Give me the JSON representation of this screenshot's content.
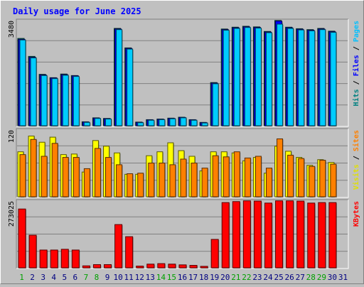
{
  "chart_data": {
    "type": "bar",
    "title": "Daily usage for June 2025",
    "categories": [
      "1",
      "2",
      "3",
      "4",
      "5",
      "6",
      "7",
      "8",
      "9",
      "10",
      "11",
      "12",
      "13",
      "14",
      "15",
      "16",
      "17",
      "18",
      "19",
      "20",
      "21",
      "22",
      "23",
      "24",
      "25",
      "26",
      "27",
      "28",
      "29",
      "30",
      "31"
    ],
    "weekend_days": [
      "1",
      "7",
      "8",
      "14",
      "15",
      "21",
      "22",
      "28",
      "29"
    ],
    "panels": [
      {
        "id": "hits-files-pages",
        "max_label": "3480",
        "ylim": [
          0,
          3480
        ],
        "ylabels": [
          {
            "text": "Hits",
            "color": "#008080"
          },
          {
            "text": "Files",
            "color": "#0000ff"
          },
          {
            "text": "Pages",
            "color": "#00c0ff"
          }
        ],
        "series": [
          {
            "name": "Hits",
            "color": "#00806c",
            "values": [
              2870,
              2280,
              1690,
              1580,
              1700,
              1650,
              130,
              260,
              240,
              3200,
              2560,
              120,
              200,
              220,
              250,
              280,
              200,
              110,
              1420,
              3180,
              3240,
              3270,
              3250,
              3100,
              3460,
              3240,
              3190,
              3160,
              3200,
              3110,
              null
            ]
          },
          {
            "name": "Files",
            "color": "#0000ff",
            "values": [
              2840,
              2250,
              1670,
              1570,
              1680,
              1640,
              120,
              250,
              230,
              3180,
              2540,
              110,
              190,
              210,
              240,
              270,
              190,
              100,
              1400,
              3160,
              3220,
              3250,
              3230,
              3080,
              3440,
              3220,
              3170,
              3140,
              3180,
              3090,
              null
            ]
          },
          {
            "name": "Pages",
            "color": "#00ccff",
            "values": [
              2820,
              2230,
              1650,
              1550,
              1660,
              1620,
              110,
              240,
              220,
              3160,
              2520,
              100,
              180,
              200,
              230,
              260,
              180,
              90,
              1380,
              3140,
              3200,
              3230,
              3210,
              3060,
              3340,
              3200,
              3150,
              3120,
              3160,
              3070,
              null
            ]
          }
        ]
      },
      {
        "id": "visits-sites",
        "max_label": "120",
        "ylim": [
          0,
          120
        ],
        "ylabels": [
          {
            "text": "Visits",
            "color": "#e0e000"
          },
          {
            "text": "Sites",
            "color": "#ff8000"
          }
        ],
        "series": [
          {
            "name": "Visits",
            "color": "#ffff00",
            "values": [
              80,
              108,
              97,
              106,
              75,
              76,
              44,
              100,
              90,
              78,
              40,
              40,
              73,
              80,
              96,
              82,
              72,
              46,
              80,
              80,
              78,
              64,
              70,
              42,
              90,
              81,
              70,
              56,
              66,
              61,
              null
            ]
          },
          {
            "name": "Sites",
            "color": "#ff8000",
            "values": [
              75,
              102,
              72,
              95,
              70,
              70,
              50,
              86,
              70,
              57,
              41,
              42,
              60,
              60,
              57,
              67,
              60,
              51,
              73,
              71,
              80,
              69,
              72,
              51,
              103,
              74,
              68,
              54,
              65,
              58,
              null
            ]
          }
        ]
      },
      {
        "id": "kbytes",
        "max_label": "273025",
        "ylim": [
          0,
          273025
        ],
        "ylabels": [
          {
            "text": "KBytes",
            "color": "#ff0000"
          }
        ],
        "series": [
          {
            "name": "KBytes",
            "color": "#ff0000",
            "values": [
              238000,
              132000,
              72000,
              72000,
              75000,
              72000,
              8000,
              13000,
              13000,
              175000,
              126000,
              7000,
              15000,
              17000,
              15000,
              12000,
              10000,
              6000,
              115000,
              264000,
              268000,
              271000,
              270000,
              262000,
              271000,
              271000,
              270000,
              262000,
              264000,
              264000,
              null
            ]
          }
        ]
      }
    ],
    "grid": true,
    "legend": "right"
  },
  "colors": {
    "background": "#c0c0c0",
    "plot_background": "#c0c0c0",
    "title": "#0000ff",
    "weekday_label": "#000080",
    "weekend_label": "#00a000",
    "gridline": "#808080"
  }
}
